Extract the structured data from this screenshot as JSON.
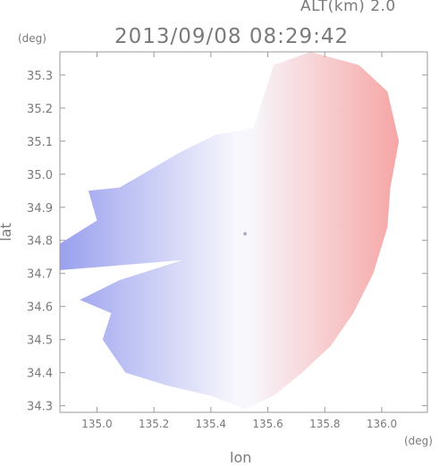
{
  "header": {
    "altitude_label": "ALT(km) 2.0",
    "timestamp": "2013/09/08 08:29:42"
  },
  "chart_data": {
    "type": "heatmap",
    "title": "2013/09/08 08:29:42",
    "subtitle": "ALT(km) 2.0",
    "xlabel": "lon",
    "ylabel": "lat",
    "x_unit": "(deg)",
    "y_unit": "(deg)",
    "xlim": [
      134.87,
      136.16
    ],
    "ylim": [
      34.28,
      35.37
    ],
    "x_ticks": [
      135.0,
      135.2,
      135.4,
      135.6,
      135.8,
      136.0
    ],
    "x_tick_labels": [
      "135.0",
      "135.2",
      "135.4",
      "135.6",
      "135.8",
      "136.0"
    ],
    "y_ticks": [
      34.3,
      34.4,
      34.5,
      34.6,
      34.7,
      34.8,
      34.9,
      35.0,
      35.1,
      35.2,
      35.3
    ],
    "y_tick_labels": [
      "34.3",
      "34.4",
      "34.5",
      "34.6",
      "34.7",
      "34.8",
      "34.9",
      "35.0",
      "35.1",
      "35.2",
      "35.3"
    ],
    "grid": false,
    "center": [
      135.52,
      34.82
    ],
    "colors": {
      "negative": "#9aa0ee",
      "neutral": "#f7f7fc",
      "positive": "#f7a5a5"
    },
    "description_values": "Doppler-like field: blue (negative) west of the center, red (positive) east of the center",
    "boundary": [
      [
        135.42,
        35.12
      ],
      [
        135.55,
        35.14
      ],
      [
        135.62,
        35.33
      ],
      [
        135.75,
        35.37
      ],
      [
        135.92,
        35.33
      ],
      [
        136.02,
        35.25
      ],
      [
        136.06,
        35.1
      ],
      [
        136.03,
        34.96
      ],
      [
        136.02,
        34.84
      ],
      [
        135.97,
        34.7
      ],
      [
        135.9,
        34.58
      ],
      [
        135.82,
        34.48
      ],
      [
        135.72,
        34.4
      ],
      [
        135.62,
        34.33
      ],
      [
        135.52,
        34.29
      ],
      [
        135.4,
        34.33
      ],
      [
        135.25,
        34.36
      ],
      [
        135.1,
        34.4
      ],
      [
        135.02,
        34.5
      ],
      [
        135.05,
        34.58
      ],
      [
        134.94,
        34.62
      ],
      [
        135.08,
        34.68
      ],
      [
        135.3,
        34.74
      ],
      [
        134.87,
        34.71
      ],
      [
        134.87,
        34.79
      ],
      [
        135.0,
        34.86
      ],
      [
        134.97,
        34.95
      ],
      [
        135.08,
        34.96
      ],
      [
        135.2,
        35.02
      ],
      [
        135.3,
        35.07
      ]
    ]
  }
}
